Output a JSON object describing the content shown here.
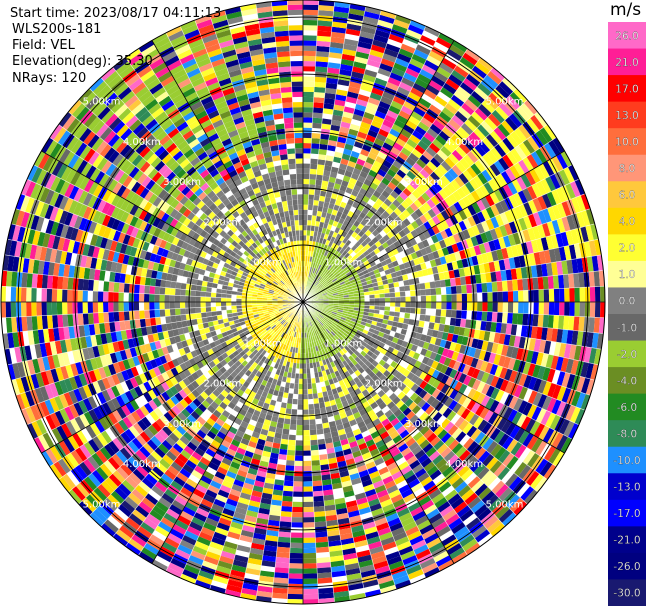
{
  "header": {
    "start_time": "Start time: 2023/08/17 04:11:13",
    "instrument": "WLS200s-181",
    "field": "Field: VEL",
    "elevation": "Elevation(deg): 35.30",
    "nrays": "NRays: 120"
  },
  "chart_data": {
    "type": "heatmap",
    "projection": "polar (PPI scan)",
    "field": "VEL",
    "unit_label": "m/s",
    "n_rays": 120,
    "range_rings_km": [
      1.0,
      2.0,
      3.0,
      4.0,
      5.0
    ],
    "range_ring_labels": [
      "1.00km",
      "2.00km",
      "3.00km",
      "4.00km",
      "5.00km"
    ],
    "colorbar_ticks": [
      "26.0",
      "21.0",
      "17.0",
      "13.0",
      "10.0",
      "8.0",
      "6.0",
      "4.0",
      "2.0",
      "1.0",
      "0.0",
      "-1.0",
      "-2.0",
      "-4.0",
      "-6.0",
      "-8.0",
      "-10.0",
      "-13.0",
      "-17.0",
      "-21.0",
      "-26.0",
      "-30.0"
    ],
    "colorbar_colors": [
      "#ff69c8",
      "#ff1e96",
      "#ff0000",
      "#ff3c1e",
      "#ff6e3c",
      "#ff9678",
      "#ffc83c",
      "#ffd700",
      "#ffff32",
      "#ffff96",
      "#808080",
      "#686868",
      "#9acd32",
      "#6b8e23",
      "#228b22",
      "#2e8b57",
      "#1e90ff",
      "#0000cd",
      "#0000ff",
      "#00008b",
      "#000080",
      "#191970"
    ],
    "regions": [
      {
        "range_km": [
          0,
          1.0
        ],
        "description": "yellow (approaching ~+2 m/s) on west half, yellow-green (~-2 m/s) on east half"
      },
      {
        "range_km": [
          1.0,
          2.5
        ],
        "description": "mostly gray near-zero/noise with scattered yellow patches"
      },
      {
        "range_km": [
          2.5,
          5.3
        ],
        "description": "speckled noise across all colors, green/yellow coherent bands in north-west and east"
      }
    ]
  },
  "colors": {
    "ring": "#000000",
    "ray": "#ffffff",
    "label": "#ffffff",
    "background": "#ffffff"
  }
}
